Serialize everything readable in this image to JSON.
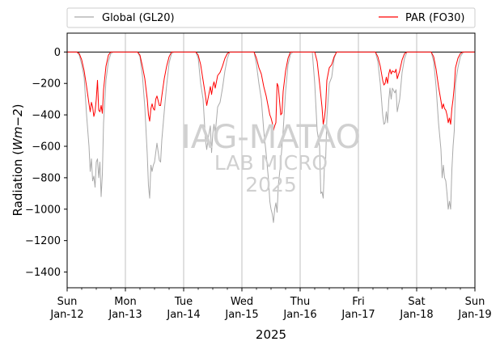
{
  "chart_data": {
    "type": "line",
    "ylabel": "Radiation ($Wm{-}2$)",
    "ylabel_main": "Radiation (",
    "ylabel_math": "Wm−2",
    "ylabel_close": ")",
    "xlabel": "2025",
    "ylim": [
      -1500,
      120
    ],
    "xlim": [
      0,
      168
    ],
    "y_ticks": [
      0,
      -200,
      -400,
      -600,
      -800,
      -1000,
      -1200,
      -1400
    ],
    "x_ticks": [
      {
        "x": 0,
        "day": "Sun",
        "date": "Jan-12"
      },
      {
        "x": 24,
        "day": "Mon",
        "date": "Jan-13"
      },
      {
        "x": 48,
        "day": "Tue",
        "date": "Jan-14"
      },
      {
        "x": 72,
        "day": "Wed",
        "date": "Jan-15"
      },
      {
        "x": 96,
        "day": "Thu",
        "date": "Jan-16"
      },
      {
        "x": 120,
        "day": "Fri",
        "date": "Jan-17"
      },
      {
        "x": 144,
        "day": "Sat",
        "date": "Jan-18"
      },
      {
        "x": 168,
        "day": "Sun",
        "date": "Jan-19"
      }
    ],
    "x_unit": "hours since Sun Jan-12 00:00",
    "grid": "vertical-major",
    "zero_line": true,
    "legend": {
      "placement": "top-above"
    },
    "watermark": [
      "IAG-MATAO",
      "LAB MICRO",
      "2025"
    ],
    "series": [
      {
        "name": "Global (GL20)",
        "color": "#a9a9a9",
        "points": [
          [
            0,
            0
          ],
          [
            4,
            0
          ],
          [
            5,
            -20
          ],
          [
            6,
            -80
          ],
          [
            7,
            -160
          ],
          [
            8,
            -400
          ],
          [
            9,
            -600
          ],
          [
            9.5,
            -760
          ],
          [
            10,
            -680
          ],
          [
            10.5,
            -820
          ],
          [
            11,
            -790
          ],
          [
            11.5,
            -860
          ],
          [
            12,
            -700
          ],
          [
            12.5,
            -680
          ],
          [
            13,
            -800
          ],
          [
            13.5,
            -700
          ],
          [
            14,
            -920
          ],
          [
            14.5,
            -780
          ],
          [
            15,
            -450
          ],
          [
            16,
            -180
          ],
          [
            17,
            -60
          ],
          [
            18,
            -10
          ],
          [
            19,
            0
          ],
          [
            29,
            0
          ],
          [
            30,
            -30
          ],
          [
            31,
            -150
          ],
          [
            32,
            -350
          ],
          [
            33,
            -650
          ],
          [
            33.5,
            -850
          ],
          [
            34,
            -930
          ],
          [
            34.5,
            -720
          ],
          [
            35,
            -760
          ],
          [
            35.5,
            -720
          ],
          [
            36,
            -700
          ],
          [
            37,
            -580
          ],
          [
            38,
            -690
          ],
          [
            38.5,
            -700
          ],
          [
            39,
            -560
          ],
          [
            40,
            -380
          ],
          [
            41,
            -210
          ],
          [
            42,
            -70
          ],
          [
            43,
            -10
          ],
          [
            44,
            0
          ],
          [
            53,
            0
          ],
          [
            54,
            -40
          ],
          [
            55,
            -200
          ],
          [
            56,
            -300
          ],
          [
            57,
            -560
          ],
          [
            57.5,
            -620
          ],
          [
            58,
            -560
          ],
          [
            59,
            -470
          ],
          [
            59.5,
            -640
          ],
          [
            60,
            -520
          ],
          [
            60.5,
            -460
          ],
          [
            61,
            -520
          ],
          [
            62,
            -350
          ],
          [
            63,
            -320
          ],
          [
            64,
            -230
          ],
          [
            65,
            -120
          ],
          [
            66,
            -40
          ],
          [
            67,
            0
          ],
          [
            77,
            0
          ],
          [
            78,
            -80
          ],
          [
            79,
            -200
          ],
          [
            80,
            -300
          ],
          [
            81,
            -500
          ],
          [
            82,
            -650
          ],
          [
            83,
            -820
          ],
          [
            83.5,
            -950
          ],
          [
            84,
            -1000
          ],
          [
            84.5,
            -1030
          ],
          [
            85,
            -1085
          ],
          [
            85.5,
            -1000
          ],
          [
            86,
            -960
          ],
          [
            86.5,
            -1020
          ],
          [
            87,
            -850
          ],
          [
            88,
            -700
          ],
          [
            89,
            -500
          ],
          [
            90,
            -250
          ],
          [
            91,
            -80
          ],
          [
            92,
            -15
          ],
          [
            93,
            0
          ],
          [
            101,
            0
          ],
          [
            102,
            -200
          ],
          [
            103,
            -500
          ],
          [
            104,
            -600
          ],
          [
            104.5,
            -900
          ],
          [
            105,
            -890
          ],
          [
            105.5,
            -930
          ],
          [
            106,
            -720
          ],
          [
            106.5,
            -690
          ],
          [
            107,
            -420
          ],
          [
            108,
            -200
          ],
          [
            109,
            -160
          ],
          [
            110,
            -40
          ],
          [
            111,
            0
          ],
          [
            127,
            0
          ],
          [
            128,
            -60
          ],
          [
            129,
            -200
          ],
          [
            130,
            -400
          ],
          [
            130.5,
            -460
          ],
          [
            131,
            -450
          ],
          [
            131.5,
            -380
          ],
          [
            132,
            -450
          ],
          [
            132.5,
            -310
          ],
          [
            133,
            -230
          ],
          [
            133.5,
            -300
          ],
          [
            134,
            -230
          ],
          [
            135,
            -260
          ],
          [
            135.5,
            -240
          ],
          [
            136,
            -380
          ],
          [
            137,
            -300
          ],
          [
            138,
            -130
          ],
          [
            139,
            -40
          ],
          [
            140,
            0
          ],
          [
            150,
            0
          ],
          [
            151,
            -60
          ],
          [
            152,
            -220
          ],
          [
            153,
            -450
          ],
          [
            154,
            -620
          ],
          [
            154.5,
            -800
          ],
          [
            155,
            -720
          ],
          [
            155.5,
            -800
          ],
          [
            156,
            -820
          ],
          [
            156.5,
            -900
          ],
          [
            157,
            -1000
          ],
          [
            157.5,
            -950
          ],
          [
            158,
            -1000
          ],
          [
            158.5,
            -750
          ],
          [
            159,
            -600
          ],
          [
            159.5,
            -500
          ],
          [
            160,
            -200
          ],
          [
            161,
            -100
          ],
          [
            162,
            -30
          ],
          [
            163,
            -5
          ],
          [
            164,
            0
          ],
          [
            168,
            0
          ]
        ]
      },
      {
        "name": "PAR (FO30)",
        "color": "#ff0000",
        "points": [
          [
            0,
            0
          ],
          [
            4,
            0
          ],
          [
            5,
            -10
          ],
          [
            6,
            -50
          ],
          [
            7,
            -120
          ],
          [
            8,
            -220
          ],
          [
            9,
            -330
          ],
          [
            9.5,
            -380
          ],
          [
            10,
            -320
          ],
          [
            10.5,
            -350
          ],
          [
            11,
            -410
          ],
          [
            11.5,
            -380
          ],
          [
            12,
            -300
          ],
          [
            12.5,
            -180
          ],
          [
            13,
            -370
          ],
          [
            13.5,
            -380
          ],
          [
            14,
            -340
          ],
          [
            14.5,
            -390
          ],
          [
            15,
            -240
          ],
          [
            16,
            -90
          ],
          [
            17,
            -20
          ],
          [
            18,
            0
          ],
          [
            29,
            0
          ],
          [
            30,
            -20
          ],
          [
            31,
            -90
          ],
          [
            32,
            -170
          ],
          [
            33,
            -300
          ],
          [
            33.5,
            -400
          ],
          [
            34,
            -440
          ],
          [
            34.5,
            -360
          ],
          [
            35,
            -330
          ],
          [
            35.5,
            -360
          ],
          [
            36,
            -370
          ],
          [
            36.5,
            -300
          ],
          [
            37,
            -280
          ],
          [
            38,
            -340
          ],
          [
            38.5,
            -340
          ],
          [
            39,
            -280
          ],
          [
            40,
            -170
          ],
          [
            41,
            -90
          ],
          [
            42,
            -30
          ],
          [
            43,
            0
          ],
          [
            53,
            0
          ],
          [
            54,
            -20
          ],
          [
            55,
            -80
          ],
          [
            56,
            -180
          ],
          [
            57,
            -280
          ],
          [
            57.5,
            -340
          ],
          [
            58,
            -300
          ],
          [
            59,
            -220
          ],
          [
            59.5,
            -270
          ],
          [
            60,
            -220
          ],
          [
            60.5,
            -190
          ],
          [
            61,
            -230
          ],
          [
            62,
            -150
          ],
          [
            63,
            -130
          ],
          [
            64,
            -90
          ],
          [
            65,
            -40
          ],
          [
            66,
            -10
          ],
          [
            67,
            0
          ],
          [
            77,
            0
          ],
          [
            78,
            -40
          ],
          [
            79,
            -100
          ],
          [
            80,
            -140
          ],
          [
            81,
            -220
          ],
          [
            82,
            -280
          ],
          [
            83,
            -360
          ],
          [
            83.5,
            -400
          ],
          [
            84,
            -420
          ],
          [
            84.5,
            -450
          ],
          [
            85,
            -500
          ],
          [
            85.5,
            -470
          ],
          [
            86,
            -450
          ],
          [
            86.5,
            -200
          ],
          [
            87,
            -220
          ],
          [
            88,
            -400
          ],
          [
            88.5,
            -390
          ],
          [
            89,
            -250
          ],
          [
            90,
            -120
          ],
          [
            91,
            -40
          ],
          [
            92,
            0
          ],
          [
            102,
            0
          ],
          [
            103,
            -60
          ],
          [
            104,
            -200
          ],
          [
            105,
            -350
          ],
          [
            105.5,
            -460
          ],
          [
            106,
            -420
          ],
          [
            106.5,
            -350
          ],
          [
            107,
            -180
          ],
          [
            108,
            -100
          ],
          [
            109,
            -80
          ],
          [
            110,
            -30
          ],
          [
            111,
            0
          ],
          [
            127,
            0
          ],
          [
            128,
            -30
          ],
          [
            129,
            -90
          ],
          [
            130,
            -180
          ],
          [
            130.5,
            -210
          ],
          [
            131,
            -200
          ],
          [
            131.5,
            -160
          ],
          [
            132,
            -200
          ],
          [
            132.5,
            -140
          ],
          [
            133,
            -110
          ],
          [
            133.5,
            -140
          ],
          [
            134,
            -120
          ],
          [
            135,
            -130
          ],
          [
            135.5,
            -110
          ],
          [
            136,
            -170
          ],
          [
            137,
            -120
          ],
          [
            138,
            -50
          ],
          [
            139,
            -10
          ],
          [
            140,
            0
          ],
          [
            150,
            0
          ],
          [
            151,
            -30
          ],
          [
            152,
            -110
          ],
          [
            153,
            -220
          ],
          [
            154,
            -310
          ],
          [
            154.5,
            -360
          ],
          [
            155,
            -330
          ],
          [
            155.5,
            -360
          ],
          [
            156,
            -370
          ],
          [
            156.5,
            -400
          ],
          [
            157,
            -450
          ],
          [
            157.5,
            -420
          ],
          [
            158,
            -460
          ],
          [
            158.5,
            -360
          ],
          [
            159,
            -300
          ],
          [
            159.5,
            -220
          ],
          [
            160,
            -100
          ],
          [
            161,
            -40
          ],
          [
            162,
            -10
          ],
          [
            163,
            0
          ],
          [
            168,
            0
          ]
        ]
      }
    ]
  }
}
